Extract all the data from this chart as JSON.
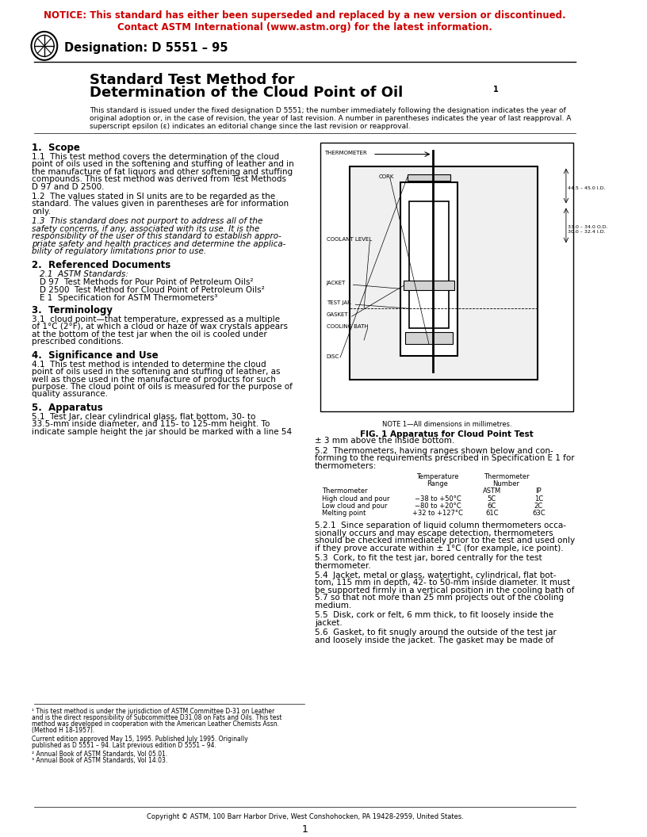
{
  "notice_line1": "NOTICE: This standard has either been superseded and replaced by a new version or discontinued.",
  "notice_line2": "Contact ASTM International (www.astm.org) for the latest information.",
  "notice_color": "#CC0000",
  "designation": "Designation: D 5551 – 95",
  "title_line1": "Standard Test Method for",
  "title_line2": "Determination of the Cloud Point of Oil",
  "title_superscript": "1",
  "intro_text": "This standard is issued under the fixed designation D 5551; the number immediately following the designation indicates the year of\noriginal adoption or, in the case of revision, the year of last revision. A number in parentheses indicates the year of last reapproval. A\nsuperscript epsilon (ε) indicates an editorial change since the last revision or reapproval.",
  "section1_title": "1.  Scope",
  "section1_p1": "1.1  This test method covers the determination of the cloud\npoint of oils used in the softening and stuffing of leather and in\nthe manufacture of fat liquors and other softening and stuffing\ncompounds. This test method was derived from Test Methods\nD 97 and D 2500.",
  "section1_p2": "1.2  The values stated in SI units are to be regarded as the\nstandard. The values given in parentheses are for information\nonly.",
  "section1_p3": "1.3  This standard does not purport to address all of the\nsafety concerns, if any, associated with its use. It is the\nresponsibility of the user of this standard to establish appro-\npriate safety and health practices and determine the applica-\nbility of regulatory limitations prior to use.",
  "section2_title": "2.  Referenced Documents",
  "section2_p1": "2.1  ASTM Standards:",
  "section2_d97": "D 97  Test Methods for Pour Point of Petroleum Oils²",
  "section2_d2500": "D 2500  Test Method for Cloud Point of Petroleum Oils²",
  "section2_e1": "E 1  Specification for ASTM Thermometers³",
  "section3_title": "3.  Terminology",
  "section3_p1": "3.1  cloud point—that temperature, expressed as a multiple\nof 1°C (2°F), at which a cloud or haze of wax crystals appears\nat the bottom of the test jar when the oil is cooled under\nprescribed conditions.",
  "section4_title": "4.  Significance and Use",
  "section4_p1": "4.1  This test method is intended to determine the cloud\npoint of oils used in the softening and stuffing of leather, as\nwell as those used in the manufacture of products for such\npurpose. The cloud point of oils is measured for the purpose of\nquality assurance.",
  "section5_title": "5.  Apparatus",
  "section5_p1": "5.1  Test Jar, clear cylindrical glass, flat bottom, 30- to\n33.5-mm inside diameter, and 115- to 125-mm height. To\nindicate sample height the jar should be marked with a line 54",
  "fig_note": "NOTE 1—All dimensions in millimetres.",
  "fig_caption": "FIG. 1 Apparatus for Cloud Point Test",
  "right_col_p1": "± 3 mm above the inside bottom.",
  "right_col_p2": "5.2  Thermometers, having ranges shown below and con-\nforming to the requirements prescribed in Specification E 1 for\nthermometers:",
  "table_headers": [
    "Thermometer",
    "Temperature\nRange",
    "Thermometer\nNumber\nASTM",
    "IP"
  ],
  "table_rows": [
    [
      "High cloud and pour",
      "−38 to +50°C",
      "5C",
      "1C"
    ],
    [
      "Low cloud and pour",
      "−80 to +20°C",
      "6C",
      "2C"
    ],
    [
      "Melting point",
      "+32 to +127°C",
      "61C",
      "63C"
    ]
  ],
  "right_col_p3": "5.2.1  Since separation of liquid column thermometers occa-\nsionally occurs and may escape detection, thermometers\nshould be checked immediately prior to the test and used only\nif they prove accurate within ± 1°C (for example, ice point).",
  "right_col_p4": "5.3  Cork, to fit the test jar, bored centrally for the test\nthermometer.",
  "right_col_p5": "5.4  Jacket, metal or glass, watertight, cylindrical, flat bot-\ntom, 115 mm in depth, 42- to 50-mm inside diameter. It must\nbe supported firmly in a vertical position in the cooling bath of\n5.7 so that not more than 25 mm projects out of the cooling\nmedium.",
  "right_col_p6": "5.5  Disk, cork or felt, 6 mm thick, to fit loosely inside the\njacket.",
  "right_col_p7": "5.6  Gasket, to fit snugly around the outside of the test jar\nand loosely inside the jacket. The gasket may be made of",
  "footnote1": "¹ This test method is under the jurisdiction of ASTM Committee D-31 on Leather\nand is the direct responsibility of Subcommittee D31.08 on Fats and Oils. This test\nmethod was developed in cooperation with the American Leather Chemists Assn.\n(Method H 18-1957).",
  "footnote2": "Current edition approved May 15, 1995. Published July 1995. Originally\npublished as D 5551 – 94. Last previous edition D 5551 – 94.",
  "footnote3": "² Annual Book of ASTM Standards, Vol 05.01.",
  "footnote4": "³ Annual Book of ASTM Standards, Vol 14.03.",
  "copyright": "Copyright © ASTM, 100 Barr Harbor Drive, West Conshohocken, PA 19428-2959, United States.",
  "page_number": "1",
  "bg_color": "#ffffff",
  "text_color": "#000000",
  "body_fontsize": 7.5,
  "section_title_fontsize": 8.5
}
